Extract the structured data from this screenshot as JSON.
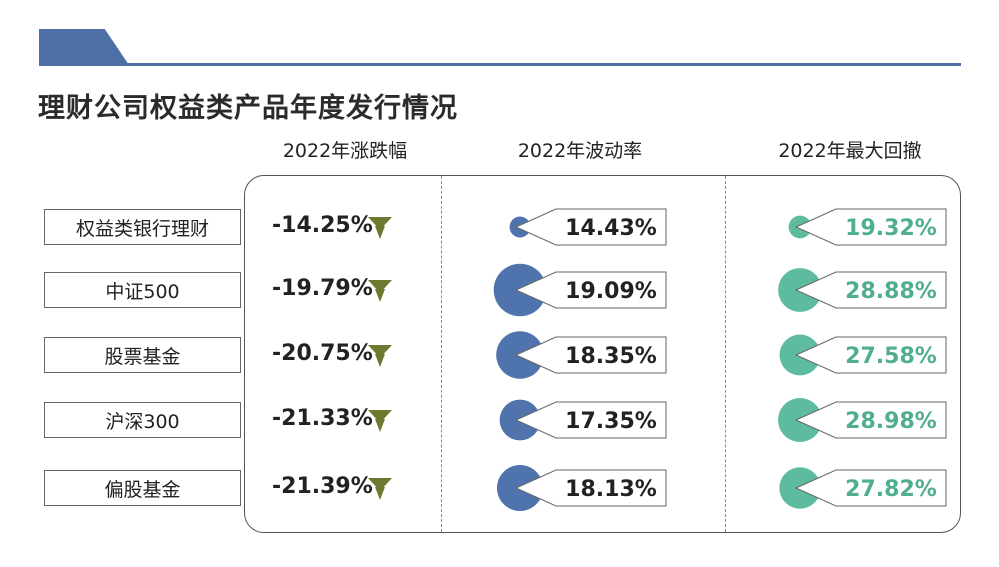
{
  "title": "理财公司权益类产品年度发行情况",
  "columns": [
    "2022年涨跌幅",
    "2022年波动率",
    "2022年最大回撤"
  ],
  "colors": {
    "accent": "#4e6fa6",
    "volatility": "#4f74ad",
    "drawdown": "#5dbb9f",
    "drawdown_text": "#4fae91",
    "arrow": "#6b7a2f"
  },
  "chart_data": {
    "type": "table",
    "title": "理财公司权益类产品年度发行情况",
    "categories": [
      "权益类银行理财",
      "中证500",
      "股票基金",
      "沪深300",
      "偏股基金"
    ],
    "series": [
      {
        "name": "2022年涨跌幅",
        "values": [
          -14.25,
          -19.79,
          -20.75,
          -21.33,
          -21.39
        ],
        "labels": [
          "-14.25%",
          "-19.79%",
          "-20.75%",
          "-21.33%",
          "-21.39%"
        ]
      },
      {
        "name": "2022年波动率",
        "values": [
          14.43,
          19.09,
          18.35,
          17.35,
          18.13
        ],
        "labels": [
          "14.43%",
          "19.09%",
          "18.35%",
          "17.35%",
          "18.13%"
        ]
      },
      {
        "name": "2022年最大回撤",
        "values": [
          19.32,
          28.88,
          27.58,
          28.98,
          27.82
        ],
        "labels": [
          "19.32%",
          "28.88%",
          "27.58%",
          "28.98%",
          "27.82%"
        ]
      }
    ]
  }
}
